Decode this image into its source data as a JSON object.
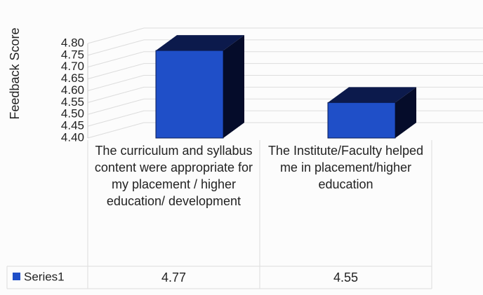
{
  "chart_data": {
    "type": "bar3d",
    "y_label": "Feedback Score",
    "categories": [
      "The curriculum and syllabus content were appropriate for my placement / higher education/ development",
      "The Institute/Faculty helped me in placement/higher education"
    ],
    "series": [
      {
        "name": "Series1",
        "color": "#1f4fc8",
        "values": [
          4.77,
          4.55
        ]
      }
    ],
    "ylim": [
      4.4,
      4.8
    ],
    "yticks": [
      {
        "value": 4.4,
        "label": "4.40"
      },
      4.45,
      {
        "value": 4.5,
        "label": "4.50"
      },
      4.55,
      {
        "value": 4.6,
        "label": "4.60"
      },
      4.65,
      {
        "value": 4.7,
        "label": "4.70"
      },
      4.75,
      {
        "value": 4.8,
        "label": "4.80"
      }
    ],
    "grid": true,
    "data_table": true
  }
}
